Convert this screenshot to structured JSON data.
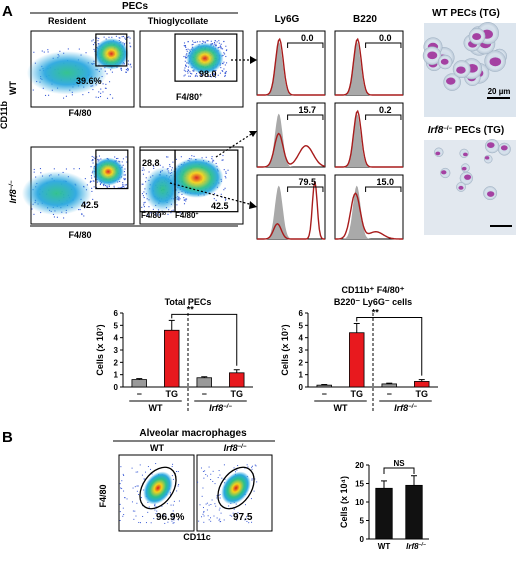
{
  "panels": {
    "a_label": "A",
    "b_label": "B"
  },
  "flow": {
    "header": "PECs",
    "col_resident": "Resident",
    "col_tg": "Thioglycollate",
    "row_wt": "WT",
    "row_ko": "Irf8",
    "ko_sup": "−/−",
    "y_axis": "CD11b",
    "x_axis_top": "F4/80",
    "x_axis_bottom": "F4/80",
    "wt_res_pct": "39.6%",
    "wt_tg_pct": "98.0",
    "wt_tg_gate": "F4/80",
    "wt_tg_gate_sup": "+",
    "ko_res_pct": "42.5",
    "ko_tg_lo_pct": "28.8",
    "ko_tg_hi_pct": "42.5",
    "ko_tg_lo_gate": "F4/80",
    "ko_tg_lo_gate_sup": "lo",
    "ko_tg_hi_gate": "F4/80",
    "ko_tg_hi_gate_sup": "+"
  },
  "hist": {
    "col_ly6g": "Ly6G",
    "col_b220": "B220",
    "r1_ly6g": "0.0",
    "r1_b220": "0.0",
    "r2_ly6g": "15.7",
    "r2_b220": "0.2",
    "r3_ly6g": "79.5",
    "r3_b220": "15.0"
  },
  "micro": {
    "wt_title": "WT PECs (TG)",
    "ko_title": "Irf8",
    "ko_sup": "−/−",
    "ko_suffix": " PECs (TG)",
    "scale": "20 µm"
  },
  "colors": {
    "red_bar": "#e8191e",
    "gray_bar": "#9a9a9a",
    "black_bar": "#111111",
    "hist_outline": "#a81c1c",
    "hist_fill": "#a9a9a9",
    "stain": "#a0309a"
  },
  "chart_data": [
    {
      "type": "bar",
      "title": "Total PECs",
      "ylabel": "Cells (x 10⁷)",
      "ylim": [
        0,
        6
      ],
      "yticks": [
        "0",
        "1",
        "2",
        "3",
        "4",
        "5",
        "6"
      ],
      "categories": [
        "−",
        "TG",
        "−",
        "TG"
      ],
      "groups": [
        "WT",
        "Irf8−/−"
      ],
      "values": [
        0.6,
        4.6,
        0.75,
        1.15
      ],
      "errors": [
        0.08,
        0.8,
        0.08,
        0.25
      ],
      "colors": [
        "#9a9a9a",
        "#e8191e",
        "#9a9a9a",
        "#e8191e"
      ],
      "significance": "**"
    },
    {
      "type": "bar",
      "title": "CD11b⁺ F4/80⁺ B220⁻ Ly6G⁻ cells",
      "title_line1": "CD11b⁺ F4/80⁺",
      "title_line2": "B220⁻ Ly6G⁻ cells",
      "ylabel": "Cells (x 10⁷)",
      "ylim": [
        0,
        6
      ],
      "yticks": [
        "0",
        "1",
        "2",
        "3",
        "4",
        "5",
        "6"
      ],
      "categories": [
        "−",
        "TG",
        "−",
        "TG"
      ],
      "groups": [
        "WT",
        "Irf8−/−"
      ],
      "values": [
        0.15,
        4.4,
        0.25,
        0.45
      ],
      "errors": [
        0.05,
        0.75,
        0.06,
        0.15
      ],
      "colors": [
        "#9a9a9a",
        "#e8191e",
        "#9a9a9a",
        "#e8191e"
      ],
      "significance": "**"
    },
    {
      "type": "bar",
      "title": "",
      "ylabel": "Cells (x 10⁴)",
      "ylim": [
        0,
        20
      ],
      "yticks": [
        "0",
        "5",
        "10",
        "15",
        "20"
      ],
      "categories": [
        "WT",
        "Irf8−/−"
      ],
      "values": [
        13.7,
        14.5
      ],
      "errors": [
        2.0,
        2.6
      ],
      "colors": [
        "#111111",
        "#111111"
      ],
      "significance": "NS"
    }
  ],
  "alveolar": {
    "header": "Alveolar macrophages",
    "col_wt": "WT",
    "col_ko": "Irf8",
    "ko_sup": "−/−",
    "y_axis": "F4/80",
    "x_axis": "CD11c",
    "wt_pct": "96.9%",
    "ko_pct": "97.5"
  }
}
